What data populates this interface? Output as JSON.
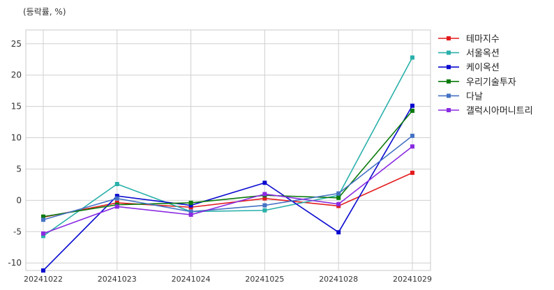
{
  "chart_data": {
    "type": "line",
    "unit_label": "(등락률, %)",
    "title": "",
    "xlabel": "",
    "ylabel": "",
    "categories": [
      "20241022",
      "20241023",
      "20241024",
      "20241025",
      "20241028",
      "20241029"
    ],
    "ylim": [
      -11.2,
      27.2
    ],
    "yticks": [
      -10,
      -5,
      0,
      5,
      10,
      15,
      20,
      25
    ],
    "grid": true,
    "legend_position": "outside-right",
    "series": [
      {
        "name": "테마지수",
        "color": "#e31a1c",
        "values": [
          -2.7,
          -0.4,
          -1.1,
          0.3,
          -0.9,
          4.4
        ]
      },
      {
        "name": "서울옥션",
        "color": "#2ab0aa",
        "values": [
          -5.7,
          2.6,
          -1.8,
          -1.6,
          0.8,
          22.8
        ]
      },
      {
        "name": "케이옥션",
        "color": "#0a0ad0",
        "values": [
          -11.2,
          0.7,
          -0.8,
          2.8,
          -5.1,
          15.1
        ]
      },
      {
        "name": "우리기술투자",
        "color": "#0a7a0a",
        "values": [
          -2.6,
          -0.7,
          -0.4,
          0.8,
          0.4,
          14.3
        ]
      },
      {
        "name": "다날",
        "color": "#4472c4",
        "values": [
          -3.1,
          0.3,
          -1.8,
          -0.8,
          1.1,
          10.3
        ]
      },
      {
        "name": "갤럭시아머니트리",
        "color": "#8a2be2",
        "values": [
          -5.3,
          -1.0,
          -2.3,
          1.0,
          -0.6,
          8.6
        ]
      }
    ]
  }
}
